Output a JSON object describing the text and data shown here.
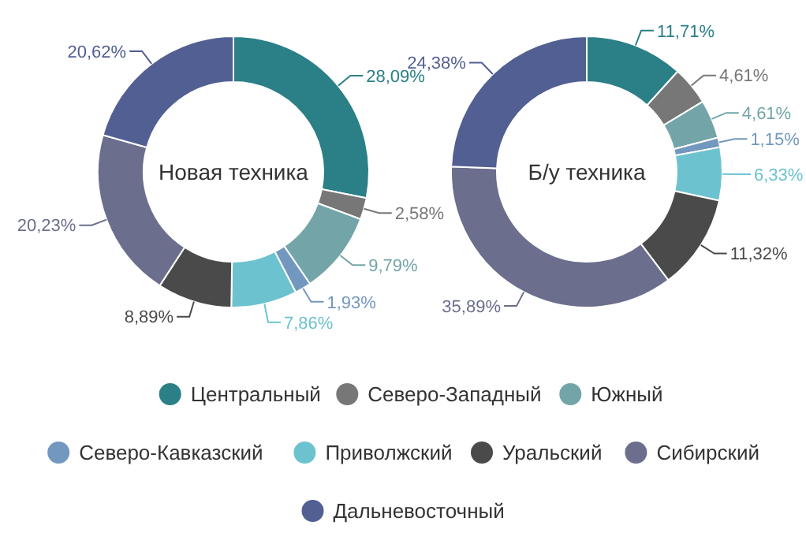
{
  "chart_data": [
    {
      "type": "donut",
      "title": "Новая техника",
      "legend": "bottom",
      "categories": [
        "Центральный",
        "Северо-Западный",
        "Южный",
        "Северо-Кавказский",
        "Приволжский",
        "Уральский",
        "Сибирский",
        "Дальневосточный"
      ],
      "values": [
        28.09,
        2.58,
        9.79,
        1.93,
        7.86,
        8.89,
        20.23,
        20.62
      ],
      "value_labels": [
        "28,09%",
        "2,58%",
        "9,79%",
        "1,93%",
        "7,86%",
        "8,89%",
        "20,23%",
        "20,62%"
      ],
      "colors": [
        "#2b7f86",
        "#777777",
        "#73a5a8",
        "#7398bf",
        "#6cc3cf",
        "#4a4a4a",
        "#6b6e8c",
        "#525f92"
      ]
    },
    {
      "type": "donut",
      "title": "Б/у техника",
      "values": [
        11.71,
        4.61,
        4.61,
        1.15,
        6.33,
        11.32,
        35.89,
        24.38
      ],
      "value_labels": [
        "11,71%",
        "4,61%",
        "4,61%",
        "1,15%",
        "6,33%",
        "11,32%",
        "35,89%",
        "24,38%"
      ],
      "colors": [
        "#2b7f86",
        "#777777",
        "#73a5a8",
        "#7398bf",
        "#6cc3cf",
        "#4a4a4a",
        "#6b6e8c",
        "#525f92"
      ]
    }
  ]
}
